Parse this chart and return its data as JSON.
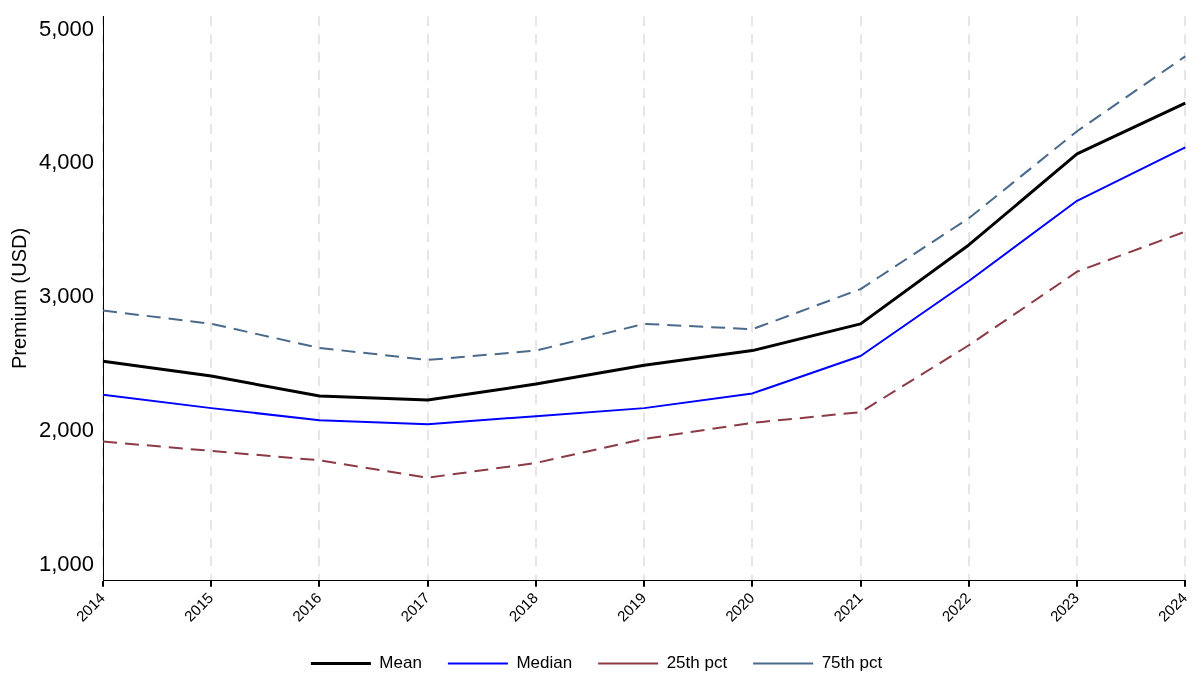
{
  "chart_data": {
    "type": "line",
    "ylabel": "Premium (USD)",
    "categories": [
      "2014",
      "2015",
      "2016",
      "2017",
      "2018",
      "2019",
      "2020",
      "2021",
      "2022",
      "2023",
      "2024"
    ],
    "series": [
      {
        "name": "Mean",
        "color": "#000000",
        "line_style": "solid",
        "values": [
          2520,
          2410,
          2260,
          2230,
          2350,
          2490,
          2600,
          2800,
          3390,
          4070,
          4450
        ]
      },
      {
        "name": "Median",
        "color": "#0000ff",
        "line_style": "solid",
        "values": [
          2270,
          2170,
          2080,
          2050,
          2110,
          2170,
          2280,
          2560,
          3120,
          3720,
          4120
        ]
      },
      {
        "name": "25th pct",
        "color": "#8b3a46",
        "line_style": "dashed",
        "values": [
          1920,
          1850,
          1780,
          1650,
          1760,
          1940,
          2060,
          2140,
          2640,
          3190,
          3490
        ]
      },
      {
        "name": "75th pct",
        "color": "#4a6a8c",
        "line_style": "dashed",
        "values": [
          2900,
          2800,
          2620,
          2530,
          2600,
          2800,
          2760,
          3060,
          3590,
          4240,
          4800
        ]
      }
    ],
    "ylim": [
      880,
      5100
    ],
    "yticks": [
      {
        "value": 1000,
        "label": "1,000"
      },
      {
        "value": 2000,
        "label": "2,000"
      },
      {
        "value": 3000,
        "label": "3,000"
      },
      {
        "value": 4000,
        "label": "4,000"
      },
      {
        "value": 5000,
        "label": "5,000"
      }
    ],
    "grid": "x",
    "legend": "bottom",
    "marker": "none"
  }
}
